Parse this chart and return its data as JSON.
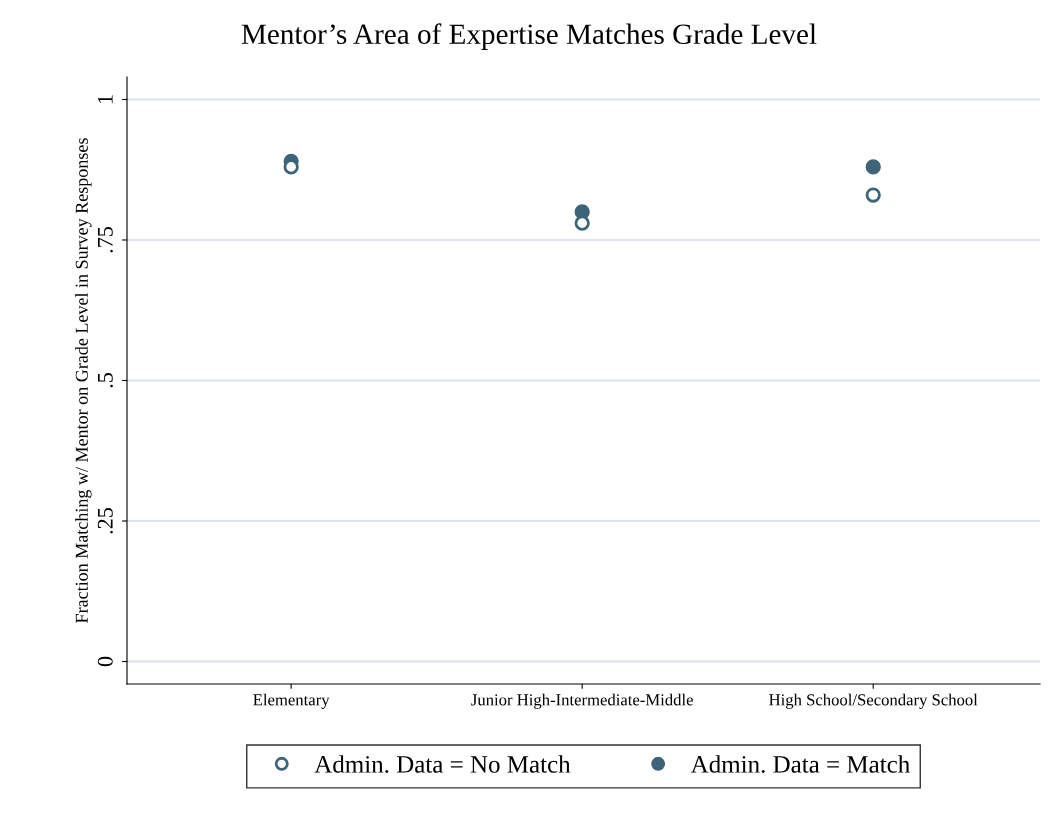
{
  "chart_data": {
    "type": "scatter",
    "title": "Mentor’s Area of Expertise Matches Grade Level",
    "ylabel": "Fraction Matching w/ Mentor on Grade Level in Survey Responses",
    "categories": [
      "Elementary",
      "Junior High-Intermediate-Middle",
      "High School/Secondary School"
    ],
    "series": [
      {
        "name": "Admin. Data = No Match",
        "color": "#3e6479",
        "marker": "hollow_circle",
        "values": [
          0.88,
          0.78,
          0.83
        ]
      },
      {
        "name": "Admin. Data = Match",
        "color": "#3e6479",
        "marker": "circle",
        "values": [
          0.89,
          0.8,
          0.88
        ]
      }
    ],
    "ylim": [
      -0.04,
      1.04
    ],
    "yticks": [
      {
        "value": 0,
        "label": "0"
      },
      {
        "value": 0.25,
        "label": ".25"
      },
      {
        "value": 0.5,
        "label": ".5"
      },
      {
        "value": 0.75,
        "label": ".75"
      },
      {
        "value": 1,
        "label": "1"
      }
    ],
    "grid": "y",
    "legend": "bottom"
  }
}
